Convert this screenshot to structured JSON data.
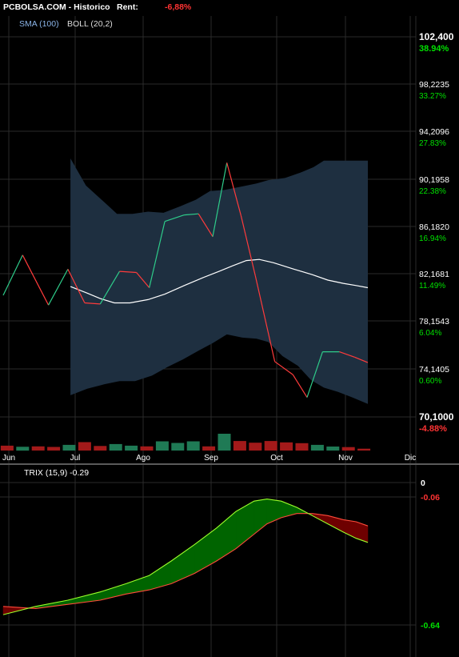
{
  "header": {
    "site": "PCBOLSA.COM - Historico",
    "rent_label": "Rent:",
    "rent_value": "-6,88%",
    "rent_color": "#ff3333"
  },
  "legend": {
    "sma": "SMA (100)",
    "boll": "BOLL (20,2)",
    "sma_color": "#8ab4e8",
    "boll_color": "#dddddd"
  },
  "colors": {
    "background": "#000000",
    "grid": "#2a2a2a",
    "band_fill": "#1e2f40",
    "price_up": "#2ecc8a",
    "price_down": "#ff3b3b",
    "sma": "#ffffff",
    "vol_up": "#1f7a55",
    "vol_down": "#a31a1a",
    "trix_up_fill": "#006400",
    "trix_down_fill": "#6e0000",
    "trix_line": "#9aff2a",
    "trix_signal": "#ff4a3a",
    "pct_pos": "#00e000",
    "pct_neg": "#ff3333"
  },
  "chart_data": [
    {
      "type": "line",
      "panel": "price",
      "x_labels": [
        "Jun",
        "Jul",
        "Ago",
        "Sep",
        "Oct",
        "Nov",
        "Dic"
      ],
      "y_ticks": [
        {
          "price": "102,400",
          "pct": "38.94%"
        },
        {
          "price": "98,2235",
          "pct": "33.27%"
        },
        {
          "price": "94,2096",
          "pct": "27.83%"
        },
        {
          "price": "90,1958",
          "pct": "22.38%"
        },
        {
          "price": "86,1820",
          "pct": "16.94%"
        },
        {
          "price": "82,1681",
          "pct": "11.49%"
        },
        {
          "price": "78,1543",
          "pct": "6.04%"
        },
        {
          "price": "74,1405",
          "pct": "0.60%"
        },
        {
          "price": "70,1000",
          "pct": "-4.88%"
        }
      ],
      "ylim": [
        69.0,
        104.0
      ],
      "x_range": [
        0,
        28.2
      ],
      "price_series": [
        [
          0.0,
          80.2
        ],
        [
          1.5,
          83.9
        ],
        [
          3.5,
          79.3
        ],
        [
          5.0,
          82.6
        ],
        [
          6.3,
          79.5
        ],
        [
          7.5,
          79.4
        ],
        [
          9.0,
          82.4
        ],
        [
          10.3,
          82.3
        ],
        [
          11.3,
          80.9
        ],
        [
          12.5,
          87.0
        ],
        [
          14.0,
          87.6
        ],
        [
          15.1,
          87.7
        ],
        [
          16.2,
          85.6
        ],
        [
          17.3,
          92.4
        ],
        [
          18.4,
          87.5
        ],
        [
          19.5,
          82.0
        ],
        [
          21.0,
          74.1
        ],
        [
          22.4,
          72.9
        ],
        [
          23.5,
          70.8
        ],
        [
          24.7,
          75.0
        ],
        [
          26.0,
          75.0
        ],
        [
          27.2,
          74.5
        ],
        [
          28.2,
          74.0
        ]
      ],
      "sma_series": [
        [
          5.2,
          81.0
        ],
        [
          6.5,
          80.4
        ],
        [
          7.5,
          79.9
        ],
        [
          8.6,
          79.5
        ],
        [
          9.8,
          79.5
        ],
        [
          11.2,
          79.8
        ],
        [
          12.5,
          80.3
        ],
        [
          14.0,
          81.1
        ],
        [
          15.4,
          81.8
        ],
        [
          16.7,
          82.4
        ],
        [
          17.7,
          82.9
        ],
        [
          18.8,
          83.4
        ],
        [
          19.8,
          83.5
        ],
        [
          20.9,
          83.2
        ],
        [
          22.5,
          82.6
        ],
        [
          23.9,
          82.1
        ],
        [
          25.1,
          81.6
        ],
        [
          26.3,
          81.3
        ],
        [
          27.3,
          81.1
        ],
        [
          28.2,
          80.9
        ]
      ],
      "boll_upper": [
        [
          5.2,
          92.8
        ],
        [
          6.4,
          90.3
        ],
        [
          7.7,
          88.9
        ],
        [
          8.8,
          87.7
        ],
        [
          10.0,
          87.7
        ],
        [
          11.2,
          87.9
        ],
        [
          12.4,
          87.8
        ],
        [
          13.7,
          88.4
        ],
        [
          14.9,
          89.0
        ],
        [
          16.0,
          89.8
        ],
        [
          17.1,
          89.9
        ],
        [
          18.4,
          90.2
        ],
        [
          19.6,
          90.5
        ],
        [
          20.5,
          90.8
        ],
        [
          21.8,
          91.0
        ],
        [
          23.0,
          91.5
        ],
        [
          24.0,
          92.0
        ],
        [
          24.8,
          92.6
        ],
        [
          25.8,
          92.6
        ],
        [
          27.0,
          92.6
        ],
        [
          28.2,
          92.6
        ]
      ],
      "boll_lower": [
        [
          5.2,
          71.0
        ],
        [
          6.5,
          71.6
        ],
        [
          7.8,
          72.0
        ],
        [
          9.0,
          72.3
        ],
        [
          10.2,
          72.3
        ],
        [
          11.5,
          72.8
        ],
        [
          12.7,
          73.6
        ],
        [
          13.9,
          74.3
        ],
        [
          15.1,
          75.1
        ],
        [
          16.2,
          75.8
        ],
        [
          17.3,
          76.6
        ],
        [
          18.5,
          76.3
        ],
        [
          19.6,
          76.2
        ],
        [
          20.5,
          75.9
        ],
        [
          21.6,
          74.6
        ],
        [
          22.8,
          73.7
        ],
        [
          23.8,
          72.4
        ],
        [
          24.8,
          71.7
        ],
        [
          25.9,
          71.3
        ],
        [
          27.0,
          70.8
        ],
        [
          28.2,
          70.2
        ]
      ],
      "volume_bars": [
        {
          "x": 0.3,
          "h": 0.45,
          "dir": "down"
        },
        {
          "x": 1.5,
          "h": 0.35,
          "dir": "up"
        },
        {
          "x": 2.7,
          "h": 0.38,
          "dir": "down"
        },
        {
          "x": 3.9,
          "h": 0.33,
          "dir": "down"
        },
        {
          "x": 5.1,
          "h": 0.52,
          "dir": "up"
        },
        {
          "x": 6.3,
          "h": 0.77,
          "dir": "down"
        },
        {
          "x": 7.5,
          "h": 0.42,
          "dir": "down"
        },
        {
          "x": 8.7,
          "h": 0.6,
          "dir": "up"
        },
        {
          "x": 9.9,
          "h": 0.45,
          "dir": "up"
        },
        {
          "x": 11.1,
          "h": 0.38,
          "dir": "down"
        },
        {
          "x": 12.3,
          "h": 0.85,
          "dir": "up"
        },
        {
          "x": 13.5,
          "h": 0.7,
          "dir": "up"
        },
        {
          "x": 14.7,
          "h": 0.85,
          "dir": "up"
        },
        {
          "x": 15.9,
          "h": 0.38,
          "dir": "down"
        },
        {
          "x": 17.1,
          "h": 1.55,
          "dir": "up"
        },
        {
          "x": 18.3,
          "h": 0.88,
          "dir": "down"
        },
        {
          "x": 19.5,
          "h": 0.72,
          "dir": "down"
        },
        {
          "x": 20.7,
          "h": 0.88,
          "dir": "down"
        },
        {
          "x": 21.9,
          "h": 0.75,
          "dir": "down"
        },
        {
          "x": 23.1,
          "h": 0.68,
          "dir": "down"
        },
        {
          "x": 24.3,
          "h": 0.52,
          "dir": "up"
        },
        {
          "x": 25.5,
          "h": 0.37,
          "dir": "up"
        },
        {
          "x": 26.7,
          "h": 0.32,
          "dir": "down"
        },
        {
          "x": 27.9,
          "h": 0.17,
          "dir": "down"
        }
      ]
    },
    {
      "type": "area",
      "panel": "trix",
      "title": "TRIX (15,9) -0.29",
      "y_ticks": [
        "0",
        "-0.06",
        "-0.64"
      ],
      "ylim": [
        -0.69,
        0.0
      ],
      "x_range": [
        0,
        28.2
      ],
      "trix": [
        [
          0.0,
          -0.64
        ],
        [
          2.5,
          -0.6
        ],
        [
          5.0,
          -0.57
        ],
        [
          7.5,
          -0.53
        ],
        [
          9.5,
          -0.49
        ],
        [
          11.3,
          -0.45
        ],
        [
          13.0,
          -0.38
        ],
        [
          14.8,
          -0.3
        ],
        [
          16.5,
          -0.22
        ],
        [
          18.0,
          -0.14
        ],
        [
          19.4,
          -0.09
        ],
        [
          20.4,
          -0.08
        ],
        [
          21.5,
          -0.09
        ],
        [
          22.7,
          -0.12
        ],
        [
          23.9,
          -0.16
        ],
        [
          25.1,
          -0.2
        ],
        [
          26.3,
          -0.24
        ],
        [
          27.3,
          -0.27
        ],
        [
          28.2,
          -0.29
        ]
      ],
      "signal": [
        [
          0.0,
          -0.6
        ],
        [
          2.5,
          -0.61
        ],
        [
          5.0,
          -0.59
        ],
        [
          7.5,
          -0.57
        ],
        [
          9.5,
          -0.54
        ],
        [
          11.3,
          -0.52
        ],
        [
          13.0,
          -0.49
        ],
        [
          14.8,
          -0.44
        ],
        [
          16.5,
          -0.38
        ],
        [
          18.0,
          -0.32
        ],
        [
          19.4,
          -0.25
        ],
        [
          20.4,
          -0.2
        ],
        [
          21.5,
          -0.17
        ],
        [
          22.7,
          -0.15
        ],
        [
          23.9,
          -0.15
        ],
        [
          25.1,
          -0.16
        ],
        [
          26.3,
          -0.18
        ],
        [
          27.3,
          -0.19
        ],
        [
          28.2,
          -0.21
        ]
      ]
    }
  ]
}
